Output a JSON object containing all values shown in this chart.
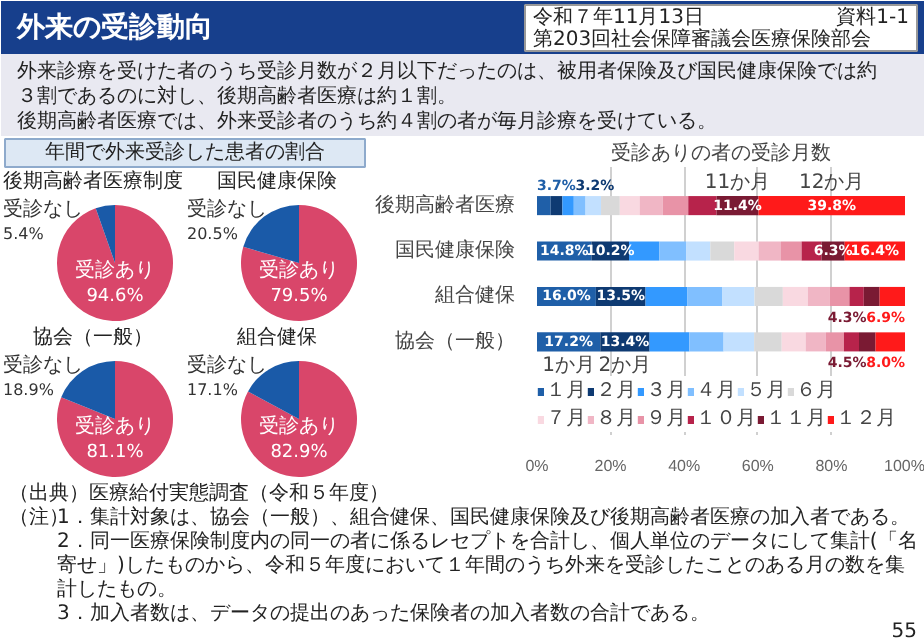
{
  "chart_data": [
    {
      "type": "other",
      "title": "外来の受診動向",
      "annotations": [
        "令和７年11月13日",
        "第203回社会保障審議会医療保険部会",
        "資料1-1",
        "外来診療を受けた者のうち受診月数が２月以下だったのは、被用者保険及び国民健康保険では約３割であるのに対し、後期高齢者医療は約１割。",
        "後期高齢者医療では、外来受診者のうち約４割の者が毎月診療を受けている。"
      ]
    },
    {
      "type": "other",
      "title": "年間で外来受診した患者の割合"
    },
    {
      "type": "pie",
      "title": "後期高齢者医療制度",
      "categories": [
        "受診あり",
        "受診なし"
      ],
      "values": [
        94.6,
        5.4
      ],
      "colors": [
        "#d9466a",
        "#1a5aa8"
      ],
      "value_labels": [
        "94.6%",
        "5.4%"
      ]
    },
    {
      "type": "pie",
      "title": "国民健康保険",
      "categories": [
        "受診あり",
        "受診なし"
      ],
      "values": [
        79.5,
        20.5
      ],
      "colors": [
        "#d9466a",
        "#1a5aa8"
      ],
      "value_labels": [
        "79.5%",
        "20.5%"
      ]
    },
    {
      "type": "pie",
      "title": "協会（一般）",
      "categories": [
        "受診あり",
        "受診なし"
      ],
      "values": [
        81.1,
        18.9
      ],
      "colors": [
        "#d9466a",
        "#1a5aa8"
      ],
      "value_labels": [
        "81.1%",
        "18.9%"
      ]
    },
    {
      "type": "pie",
      "title": "組合健保",
      "categories": [
        "受診あり",
        "受診なし"
      ],
      "values": [
        82.9,
        17.1
      ],
      "colors": [
        "#d9466a",
        "#1a5aa8"
      ],
      "value_labels": [
        "82.9%",
        "17.1%"
      ]
    },
    {
      "type": "bar",
      "orientation": "horizontal",
      "stacked": true,
      "title": "受診ありの者の受診月数",
      "categories": [
        "後期高齢者医療",
        "国民健康保険",
        "組合健保",
        "協会（一般）"
      ],
      "xlim": [
        0,
        100
      ],
      "xticks": [
        {
          "value": 0,
          "label": "0%"
        },
        {
          "value": 20,
          "label": "20%"
        },
        {
          "value": 40,
          "label": "40%"
        },
        {
          "value": 60,
          "label": "60%"
        },
        {
          "value": 80,
          "label": "80%"
        },
        {
          "value": 100,
          "label": "100%"
        }
      ],
      "grid": "x",
      "legend": "bottom",
      "series": [
        {
          "name": "１月",
          "color": "#1f5fa8",
          "values": [
            3.7,
            14.8,
            16.0,
            17.2
          ],
          "value_labels": [
            "3.7%",
            "14.8%",
            "16.0%",
            "17.2%"
          ]
        },
        {
          "name": "２月",
          "color": "#0e3a72",
          "values": [
            3.2,
            10.2,
            13.5,
            13.4
          ],
          "value_labels": [
            "3.2%",
            "10.2%",
            "13.5%",
            "13.4%"
          ]
        },
        {
          "name": "３月",
          "color": "#3399ff",
          "values": [
            3.1,
            8.2,
            11.3,
            10.8
          ]
        },
        {
          "name": "４月",
          "color": "#80bfff",
          "values": [
            3.2,
            7.3,
            9.6,
            9.3
          ]
        },
        {
          "name": "５月",
          "color": "#c2e0ff",
          "values": [
            4.2,
            6.6,
            8.7,
            8.3
          ]
        },
        {
          "name": "６月",
          "color": "#d9d9d9",
          "values": [
            5.1,
            6.5,
            7.7,
            7.5
          ]
        },
        {
          "name": "７月",
          "color": "#f9d9e1",
          "values": [
            5.4,
            6.6,
            6.8,
            6.5
          ]
        },
        {
          "name": "８月",
          "color": "#f0b6c5",
          "values": [
            6.3,
            6.1,
            5.9,
            5.5
          ]
        },
        {
          "name": "９月",
          "color": "#e893a7",
          "values": [
            6.9,
            5.6,
            5.4,
            4.9
          ]
        },
        {
          "name": "１０月",
          "color": "#b7234b",
          "values": [
            7.7,
            5.4,
            3.9,
            4.1
          ]
        },
        {
          "name": "１１月",
          "color": "#7a1a33",
          "values": [
            11.4,
            6.3,
            4.3,
            4.5
          ],
          "value_labels": [
            "11.4%",
            "6.3%",
            "4.3%",
            "4.5%"
          ]
        },
        {
          "name": "１２月",
          "color": "#ff1a1a",
          "values": [
            39.8,
            16.4,
            6.9,
            8.0
          ],
          "value_labels": [
            "39.8%",
            "16.4%",
            "6.9%",
            "8.0%"
          ]
        }
      ],
      "annotations": [
        {
          "text": "11か月",
          "x": 54.5,
          "y": "後期高齢者医療"
        },
        {
          "text": "12か月",
          "x": 80.1,
          "y": "後期高齢者医療"
        },
        {
          "text": "1か月",
          "x": 8.6,
          "y": "協会（一般）"
        },
        {
          "text": "2か月",
          "x": 23.9,
          "y": "協会（一般）"
        }
      ]
    },
    {
      "type": "other",
      "annotations": [
        "（出典）医療給付実態調査（令和５年度）",
        "（注）",
        "1．集計対象は、協会（一般）、組合健保、国民健康保険及び後期高齢者医療の加入者である。",
        "2．同一医療保険制度内の同一の者に係るレセプトを合計し、個人単位のデータにして集計(「名寄せ」)したものから、令和５年度において１年間のうち外来を受診したことのある月の数を集計したもの。",
        "3．加入者数は、データの提出のあった保険者の加入者数の合計である。",
        "55"
      ]
    }
  ]
}
